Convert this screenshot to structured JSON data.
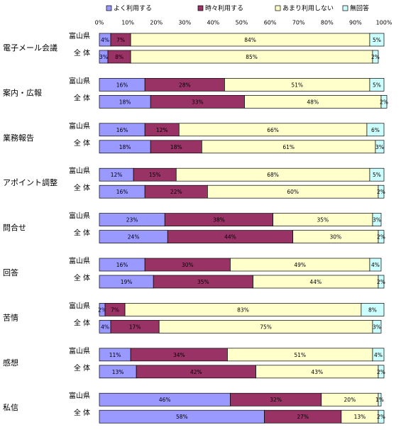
{
  "chart_data": {
    "type": "stacked-bar-horizontal",
    "legend": "top",
    "xlim": [
      0,
      100
    ],
    "xticks": [
      {
        "value": 0,
        "label": "0%"
      },
      {
        "value": 10,
        "label": "10%"
      },
      {
        "value": 20,
        "label": "20%"
      },
      {
        "value": 30,
        "label": "30%"
      },
      {
        "value": 40,
        "label": "40%"
      },
      {
        "value": 50,
        "label": "50%"
      },
      {
        "value": 60,
        "label": "60%"
      },
      {
        "value": 70,
        "label": "70%"
      },
      {
        "value": 80,
        "label": "80%"
      },
      {
        "value": 90,
        "label": "90%"
      },
      {
        "value": 100,
        "label": "100%"
      }
    ],
    "groups": [
      "電子メール会議",
      "案内・広報",
      "業務報告",
      "アポイント調整",
      "問合せ",
      "回答",
      "苦情",
      "感想",
      "私信"
    ],
    "categories": [
      "富山県",
      "全 体",
      "富山県",
      "全 体",
      "富山県",
      "全 体",
      "富山県",
      "全 体",
      "富山県",
      "全 体",
      "富山県",
      "全 体",
      "富山県",
      "全 体",
      "富山県",
      "全 体",
      "富山県",
      "全 体"
    ],
    "series": [
      {
        "name": "よく利用する",
        "color": "#9999ff",
        "values": [
          4,
          3,
          16,
          18,
          16,
          18,
          12,
          16,
          23,
          24,
          16,
          19,
          2,
          4,
          11,
          13,
          46,
          58
        ],
        "value_labels": [
          "4%",
          "3%",
          "16%",
          "18%",
          "16%",
          "18%",
          "12%",
          "16%",
          "23%",
          "24%",
          "16%",
          "19%",
          "2%",
          "4%",
          "11%",
          "13%",
          "46%",
          "58%"
        ]
      },
      {
        "name": "時々利用する",
        "color": "#993366",
        "values": [
          7,
          8,
          28,
          33,
          12,
          18,
          15,
          22,
          38,
          44,
          30,
          35,
          7,
          17,
          34,
          42,
          32,
          27
        ],
        "value_labels": [
          "7%",
          "8%",
          "28%",
          "33%",
          "12%",
          "18%",
          "15%",
          "22%",
          "38%",
          "44%",
          "30%",
          "35%",
          "7%",
          "17%",
          "34%",
          "42%",
          "32%",
          "27%"
        ]
      },
      {
        "name": "あまり利用しない",
        "color": "#ffffcc",
        "values": [
          84,
          85,
          51,
          48,
          66,
          61,
          68,
          60,
          35,
          30,
          49,
          44,
          83,
          75,
          51,
          43,
          20,
          13
        ],
        "value_labels": [
          "84%",
          "85%",
          "51%",
          "48%",
          "66%",
          "61%",
          "68%",
          "60%",
          "35%",
          "30%",
          "49%",
          "44%",
          "83%",
          "75%",
          "51%",
          "43%",
          "20%",
          "13%"
        ]
      },
      {
        "name": "無回答",
        "color": "#ccffff",
        "values": [
          5,
          2,
          5,
          2,
          6,
          3,
          5,
          2,
          3,
          2,
          4,
          2,
          8,
          3,
          4,
          2,
          1,
          2
        ],
        "value_labels": [
          "5%",
          "2%",
          "5%",
          "2%",
          "6%",
          "3%",
          "5%",
          "2%",
          "3%",
          "2%",
          "4%",
          "2%",
          "8%",
          "3%",
          "4%",
          "2%",
          "1%",
          "2%"
        ]
      }
    ]
  }
}
